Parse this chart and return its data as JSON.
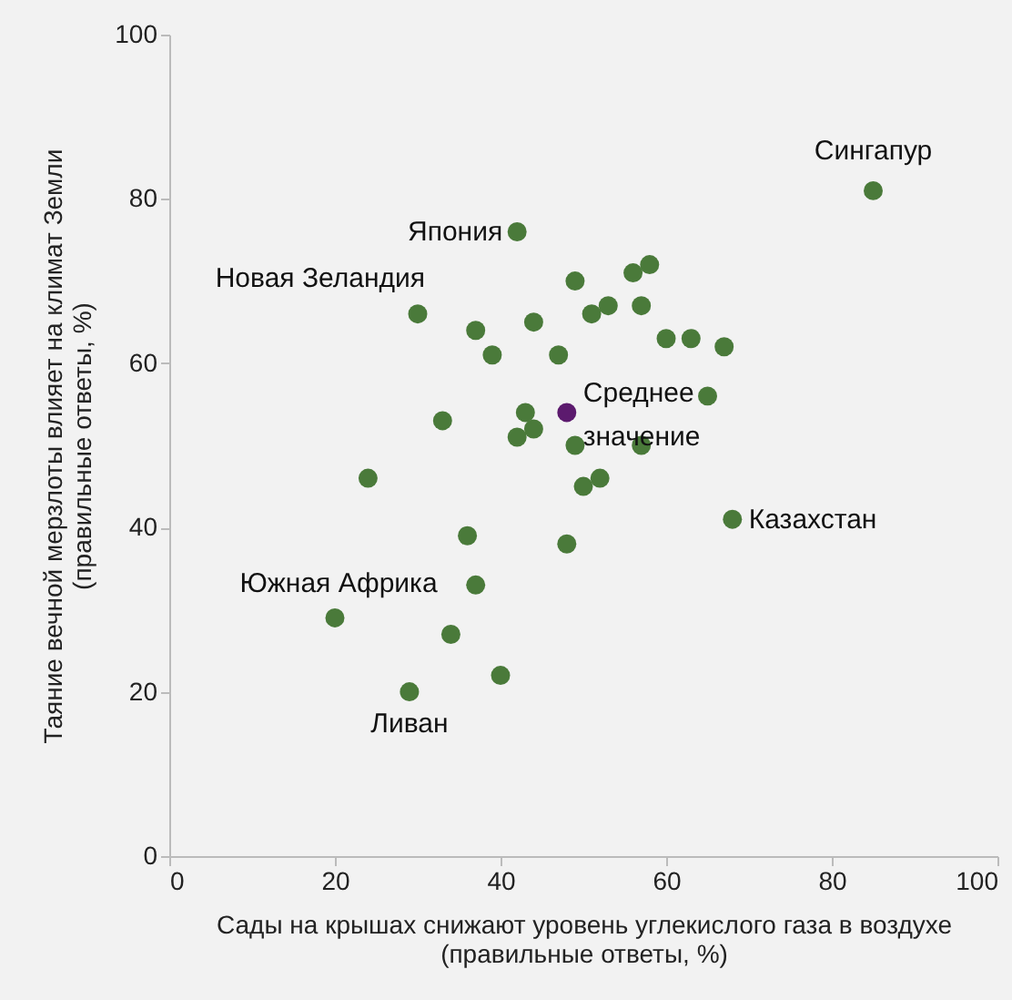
{
  "chart_data": {
    "type": "scatter",
    "xlabel": "Сады на крышах снижают уровень углекислого газа в воздухе\n(правильные ответы, %)",
    "ylabel": "Таяние вечной мерзлоты влияет на климат Земли\n(правильные ответы, %)",
    "xlim": [
      0,
      100
    ],
    "xticks": [
      0,
      20,
      40,
      60,
      80,
      100
    ],
    "ylim": [
      0,
      100
    ],
    "yticks": [
      0,
      20,
      40,
      60,
      80,
      100
    ],
    "marker": "circle",
    "series": [
      {
        "color": "#4a7a3a",
        "x": [
          85,
          42,
          30,
          49,
          56,
          58,
          53,
          51,
          57,
          44,
          37,
          39,
          47,
          60,
          63,
          67,
          65,
          33,
          43,
          44,
          42,
          49,
          57,
          52,
          50,
          24,
          68,
          48,
          36,
          37,
          20,
          34,
          40,
          29
        ],
        "values": [
          81,
          76,
          66,
          70,
          71,
          72,
          67,
          66,
          67,
          65,
          64,
          61,
          61,
          63,
          63,
          62,
          56,
          53,
          54,
          52,
          51,
          50,
          50,
          46,
          45,
          46,
          41,
          38,
          39,
          33,
          29,
          27,
          22,
          20
        ]
      },
      {
        "name": "Среднее значение",
        "color": "#5c1a6e",
        "x": [
          48
        ],
        "values": [
          54
        ]
      }
    ],
    "annotations": [
      {
        "text": "Сингапур",
        "x": 85,
        "y": 81
      },
      {
        "text": "Япония",
        "x": 42,
        "y": 76
      },
      {
        "text": "Новая Зеландия",
        "x": 30,
        "y": 66
      },
      {
        "text": "Казахстан",
        "x": 68,
        "y": 41
      },
      {
        "text": "Южная Африка",
        "x": 20,
        "y": 29
      },
      {
        "text": "Ливан",
        "x": 29,
        "y": 20
      }
    ]
  }
}
